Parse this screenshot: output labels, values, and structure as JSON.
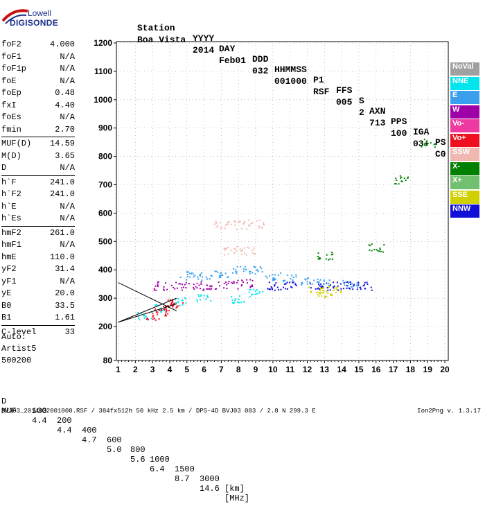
{
  "logo": {
    "top": "Lowell",
    "bottom": "DIGISONDE"
  },
  "header": {
    "row1": [
      "Station",
      "YYYY",
      "DAY",
      "DDD",
      "HHMMSS",
      "P1",
      "FFS",
      "S",
      "AXN",
      "PPS",
      "IGA",
      "PS"
    ],
    "row2": [
      "Boa Vista",
      "2014",
      "Feb01",
      "032",
      "001000",
      "RSF",
      "005",
      "2",
      "713",
      "100",
      "03+",
      "C0"
    ]
  },
  "params": [
    {
      "name": "foF2",
      "value": "4.000"
    },
    {
      "name": "foF1",
      "value": "N/A"
    },
    {
      "name": "foF1p",
      "value": "N/A"
    },
    {
      "name": "foE",
      "value": "N/A"
    },
    {
      "name": "foEp",
      "value": "0.48"
    },
    {
      "name": "fxI",
      "value": "4.40"
    },
    {
      "name": "foEs",
      "value": "N/A"
    },
    {
      "name": "fmin",
      "value": "2.70"
    },
    {
      "name": "MUF(D)",
      "value": "14.59",
      "sep": true
    },
    {
      "name": "M(D)",
      "value": "3.65"
    },
    {
      "name": "D",
      "value": "N/A"
    },
    {
      "name": "h`F",
      "value": "241.0",
      "sep": true
    },
    {
      "name": "h`F2",
      "value": "241.0"
    },
    {
      "name": "h`E",
      "value": "N/A"
    },
    {
      "name": "h`Es",
      "value": "N/A"
    },
    {
      "name": "hmF2",
      "value": "261.0",
      "sep": true
    },
    {
      "name": "hmF1",
      "value": "N/A"
    },
    {
      "name": "hmE",
      "value": "110.0"
    },
    {
      "name": "yF2",
      "value": "31.4"
    },
    {
      "name": "yF1",
      "value": "N/A"
    },
    {
      "name": "yE",
      "value": "20.0"
    },
    {
      "name": "B0",
      "value": "33.5"
    },
    {
      "name": "B1",
      "value": "1.61"
    },
    {
      "name": "C-level",
      "value": "33",
      "sep": true
    }
  ],
  "auto": {
    "line1": "Auto:",
    "line2": "Artist5",
    "line3": "500200"
  },
  "legend": [
    {
      "label": "NoVal",
      "color": "#a0a0a0"
    },
    {
      "label": "NNE",
      "color": "#00e5ee"
    },
    {
      "label": "E",
      "color": "#3aa0ee"
    },
    {
      "label": "W",
      "color": "#a000a8"
    },
    {
      "label": "Vo-",
      "color": "#ee3aa0"
    },
    {
      "label": "Vo+",
      "color": "#ee1020"
    },
    {
      "label": "SSW",
      "color": "#f0b8b0"
    },
    {
      "label": "X-",
      "color": "#008000"
    },
    {
      "label": "X+",
      "color": "#70c070"
    },
    {
      "label": "SSE",
      "color": "#d0d000"
    },
    {
      "label": "NNW",
      "color": "#1010d8"
    }
  ],
  "muf_table": {
    "d_label": "D",
    "d_values": [
      "100",
      "200",
      "400",
      "600",
      "800",
      "1000",
      "1500",
      "3000"
    ],
    "d_unit": "[km]",
    "m_label": "MUF",
    "m_values": [
      "4.4",
      "4.4",
      "4.7",
      "5.0",
      "5.6",
      "6.4",
      "8.7",
      "14.6"
    ],
    "m_unit": "[MHz]"
  },
  "footer": {
    "left": "BVJ03_2014032001000.RSF / 384fx512h 50 kHz 2.5 km / DPS-4D BVJ03 003 / 2.8 N 299.3 E",
    "right": "Ion2Png v. 1.3.17"
  },
  "chart_data": {
    "type": "scatter",
    "x_ticks": [
      1,
      2,
      3,
      4,
      5,
      6,
      7,
      8,
      9,
      10,
      11,
      12,
      13,
      14,
      15,
      16,
      17,
      18,
      19,
      20
    ],
    "y_ticks": [
      80,
      200,
      300,
      400,
      500,
      600,
      700,
      800,
      900,
      1000,
      1100,
      1200
    ],
    "xlim": [
      0.9,
      20.2
    ],
    "ylim": [
      80,
      1200
    ],
    "grid": true,
    "grid_style": "dotted",
    "series": [
      {
        "name": "NNE",
        "color": "#00e5ee",
        "x": [
          2.5,
          3.5,
          4.5,
          6.0,
          8.0,
          9.0
        ],
        "y": [
          240,
          265,
          290,
          300,
          300,
          320
        ]
      },
      {
        "name": "E",
        "color": "#3aa0ee",
        "x": [
          5.0,
          6.0,
          7.0,
          8.0,
          9.0,
          10.0,
          11.0,
          12.0,
          13.0,
          14.5
        ],
        "y": [
          380,
          380,
          390,
          400,
          400,
          380,
          370,
          360,
          360,
          350
        ]
      },
      {
        "name": "W",
        "color": "#a000a8",
        "x": [
          3.5,
          4.5,
          5.5,
          6.5,
          7.5,
          8.5
        ],
        "y": [
          345,
          345,
          345,
          345,
          350,
          355
        ]
      },
      {
        "name": "NNW",
        "color": "#1010d8",
        "x": [
          10.0,
          11.0,
          12.5,
          13.5,
          14.5,
          15.3
        ],
        "y": [
          345,
          345,
          345,
          345,
          345,
          345
        ]
      },
      {
        "name": "SSW",
        "color": "#f0b8b0",
        "x": [
          7.0,
          8.0,
          9.0,
          7.5,
          8.5
        ],
        "y": [
          560,
          560,
          565,
          470,
          470
        ]
      },
      {
        "name": "SSE",
        "color": "#d0d000",
        "x": [
          12.5,
          13.0,
          13.5
        ],
        "y": [
          330,
          320,
          330
        ]
      },
      {
        "name": "Vo+",
        "color": "#ee1020",
        "x": [
          3.0,
          3.5,
          4.0,
          4.3
        ],
        "y": [
          240,
          255,
          270,
          285
        ]
      },
      {
        "name": "X-",
        "color": "#008000",
        "x": [
          13.0,
          16.0,
          17.5,
          19.0
        ],
        "y": [
          450,
          480,
          720,
          850
        ]
      }
    ],
    "lines": [
      {
        "name": "trace-1",
        "color": "#000",
        "x": [
          1.0,
          4.4
        ],
        "y": [
          355,
          255
        ]
      },
      {
        "name": "trace-2",
        "color": "#000",
        "x": [
          1.0,
          4.4
        ],
        "y": [
          215,
          280
        ]
      },
      {
        "name": "trace-3",
        "color": "#000",
        "x": [
          1.0,
          4.4
        ],
        "y": [
          215,
          300
        ]
      }
    ]
  }
}
